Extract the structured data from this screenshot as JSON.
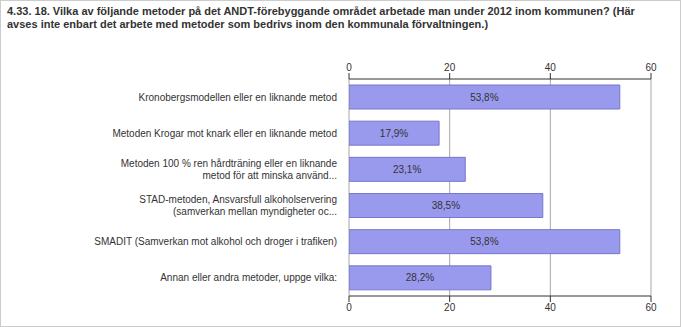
{
  "chart_data": {
    "type": "bar",
    "title": "4.33. 18. Vilka av följande metoder på det ANDT-förebyggande området arbetade man under 2012 inom kommunen? (Här avses inte enbart det arbete med metoder som bedrivs inom den kommunala förvaltningen.)",
    "categories": [
      "Kronobergsmodellen eller en liknande metod",
      "Metoden Krogar mot knark eller en liknande metod",
      "Metoden 100 % ren hårdträning eller en liknande metod för att minska använd...",
      "STAD-metoden, Ansvarsfull alkoholservering (samverkan mellan myndigheter oc...",
      "SMADIT (Samverkan mot alkohol och droger i trafiken)",
      "Annan eller andra metoder, uppge vilka:"
    ],
    "values": [
      53.8,
      17.9,
      23.1,
      38.5,
      53.8,
      28.2
    ],
    "value_labels": [
      "53,8%",
      "17,9%",
      "23,1%",
      "38,5%",
      "53,8%",
      "28,2%"
    ],
    "color": "#9999ee",
    "orientation": "horizontal",
    "xlim": [
      0,
      60
    ],
    "xticks": [
      0,
      20,
      40,
      60
    ],
    "grid": true,
    "data_labels": true
  }
}
